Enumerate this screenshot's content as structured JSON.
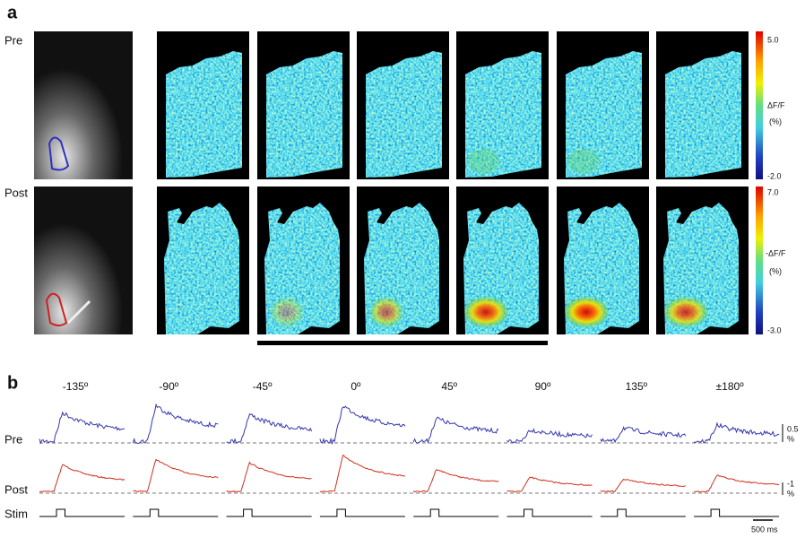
{
  "panel_a": {
    "label": "a",
    "rows": [
      {
        "label": "Pre",
        "colorbar": {
          "max": "5.0",
          "title": "ΔF/F",
          "unit": "(%)",
          "min": "-2.0"
        }
      },
      {
        "label": "Post",
        "colorbar": {
          "max": "7.0",
          "title": "-ΔF/F",
          "unit": "(%)",
          "min": "-3.0"
        }
      }
    ]
  },
  "panel_b": {
    "label": "b",
    "angles": [
      "-135º",
      "-90º",
      "-45º",
      "0º",
      "45º",
      "90º",
      "135º",
      "±180º"
    ],
    "rows": [
      "Pre",
      "Post",
      "Stim"
    ],
    "pre_scale": {
      "value": "0.5",
      "unit": "%"
    },
    "post_scale": {
      "value": "-1",
      "unit": "%"
    },
    "time_scale": "500 ms"
  }
}
